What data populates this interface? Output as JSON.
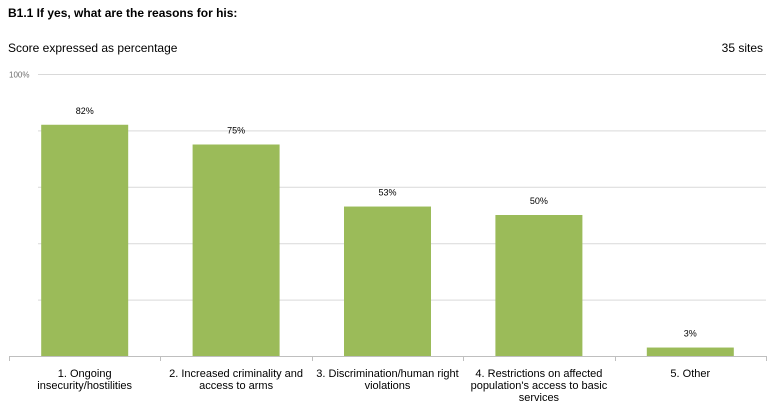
{
  "title": "B1.1 If yes, what are the reasons for his:",
  "subtitle": "Score expressed as percentage",
  "note": "35 sites",
  "colors": {
    "bar": "#9bbb59",
    "grid": "#d9d9d9",
    "axis": "#bfbfbf"
  },
  "chart_data": {
    "type": "bar",
    "categories": [
      "1. Ongoing insecurity/hostilities",
      "2. Increased criminality and access to arms",
      "3. Discrimination/human right violations",
      "4. Restrictions on affected population's access to basic services",
      "5. Other"
    ],
    "values": [
      82,
      75,
      53,
      50,
      3
    ],
    "data_labels": [
      "82%",
      "75%",
      "53%",
      "50%",
      "3%"
    ],
    "ylim": [
      0,
      100
    ],
    "y_ticks": [
      0,
      20,
      40,
      60,
      80,
      100
    ],
    "y_tick_labels": [
      "",
      "",
      "",
      "",
      "",
      "100%"
    ],
    "grid": true,
    "legend": "none"
  }
}
